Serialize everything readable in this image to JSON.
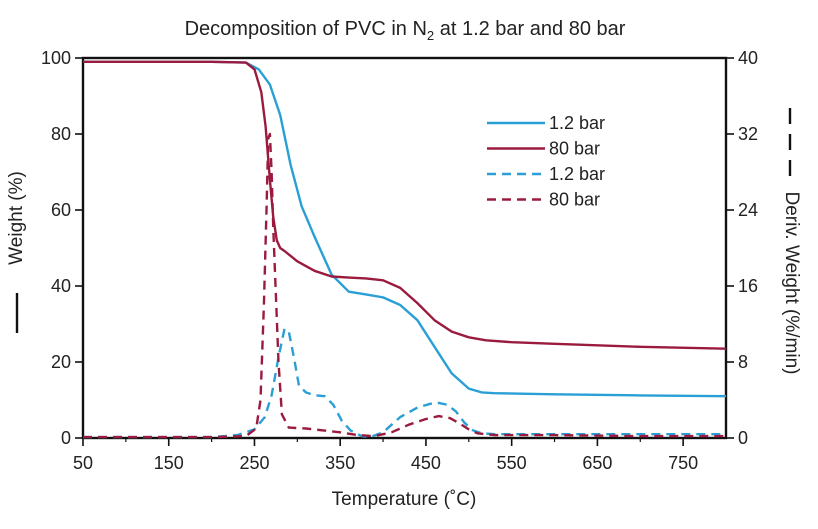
{
  "chart_data": {
    "type": "line",
    "title": "Decomposition of PVC in N",
    "title_subscript": "2",
    "title_suffix": " at 1.2 bar and 80 bar",
    "xlabel": "Temperature (˚C)",
    "ylabel": "Weight (%)",
    "y2label": "Deriv. Weight (%/min)",
    "xlim": [
      50,
      800
    ],
    "ylim": [
      0,
      100
    ],
    "y2lim": [
      0,
      40
    ],
    "xticks": [
      "50",
      "150",
      "250",
      "350",
      "450",
      "550",
      "650",
      "750"
    ],
    "yticks": [
      "0",
      "20",
      "40",
      "60",
      "80",
      "100"
    ],
    "y2ticks": [
      "0",
      "8",
      "16",
      "24",
      "32",
      "40"
    ],
    "legend_position": "top-right",
    "series": [
      {
        "name": "1.2 bar",
        "axis": "left",
        "style": "solid",
        "color": "#2a9fd6",
        "x": [
          50,
          200,
          240,
          255,
          268,
          280,
          292,
          305,
          320,
          340,
          360,
          380,
          400,
          420,
          440,
          460,
          480,
          500,
          515,
          530,
          600,
          700,
          800
        ],
        "y": [
          99,
          99,
          98.8,
          97,
          93,
          85,
          72,
          61,
          53,
          43,
          38.5,
          37.8,
          37,
          35,
          31,
          24,
          17,
          13,
          12,
          11.8,
          11.5,
          11.2,
          11
        ]
      },
      {
        "name": "80 bar",
        "axis": "left",
        "style": "solid",
        "color": "#9b1b3f",
        "x": [
          50,
          200,
          240,
          250,
          258,
          263,
          268,
          272,
          276,
          280,
          285,
          300,
          320,
          340,
          360,
          380,
          400,
          420,
          440,
          460,
          480,
          500,
          520,
          550,
          600,
          700,
          800
        ],
        "y": [
          99,
          99,
          98.8,
          97,
          91,
          82,
          68,
          58,
          52,
          50,
          49.2,
          46.5,
          44,
          42.5,
          42.2,
          42,
          41.5,
          39.5,
          35.5,
          31,
          28,
          26.5,
          25.7,
          25.2,
          24.8,
          24,
          23.5
        ]
      },
      {
        "name": "1.2 bar",
        "axis": "right",
        "style": "dashed",
        "color": "#2a9fd6",
        "x": [
          50,
          200,
          230,
          250,
          262,
          270,
          278,
          285,
          290,
          296,
          302,
          310,
          320,
          332,
          342,
          352,
          362,
          375,
          385,
          400,
          420,
          440,
          455,
          465,
          475,
          485,
          495,
          505,
          515,
          530,
          600,
          700,
          800
        ],
        "y": [
          0.1,
          0.1,
          0.3,
          0.9,
          2.2,
          4.5,
          8.5,
          11.5,
          11.2,
          8.5,
          5.5,
          4.8,
          4.5,
          4.4,
          3.5,
          1.8,
          0.8,
          0.2,
          0.1,
          0.6,
          2.2,
          3.2,
          3.6,
          3.7,
          3.5,
          2.8,
          1.6,
          0.8,
          0.5,
          0.4,
          0.4,
          0.4,
          0.4
        ]
      },
      {
        "name": "80 bar",
        "axis": "right",
        "style": "dashed",
        "color": "#9b1b3f",
        "x": [
          50,
          200,
          240,
          252,
          257,
          261,
          264,
          266,
          268,
          270,
          272,
          275,
          278,
          282,
          290,
          310,
          330,
          350,
          370,
          390,
          410,
          430,
          450,
          465,
          478,
          490,
          500,
          510,
          530,
          600,
          700,
          800
        ],
        "y": [
          0.1,
          0.1,
          0.2,
          1,
          4,
          14,
          24,
          31.5,
          32,
          28,
          22,
          15,
          8,
          2.5,
          1.1,
          1,
          0.8,
          0.6,
          0.3,
          0.2,
          0.6,
          1.4,
          2,
          2.3,
          2.1,
          1.5,
          0.9,
          0.5,
          0.3,
          0.3,
          0.2,
          0.2
        ]
      }
    ]
  }
}
